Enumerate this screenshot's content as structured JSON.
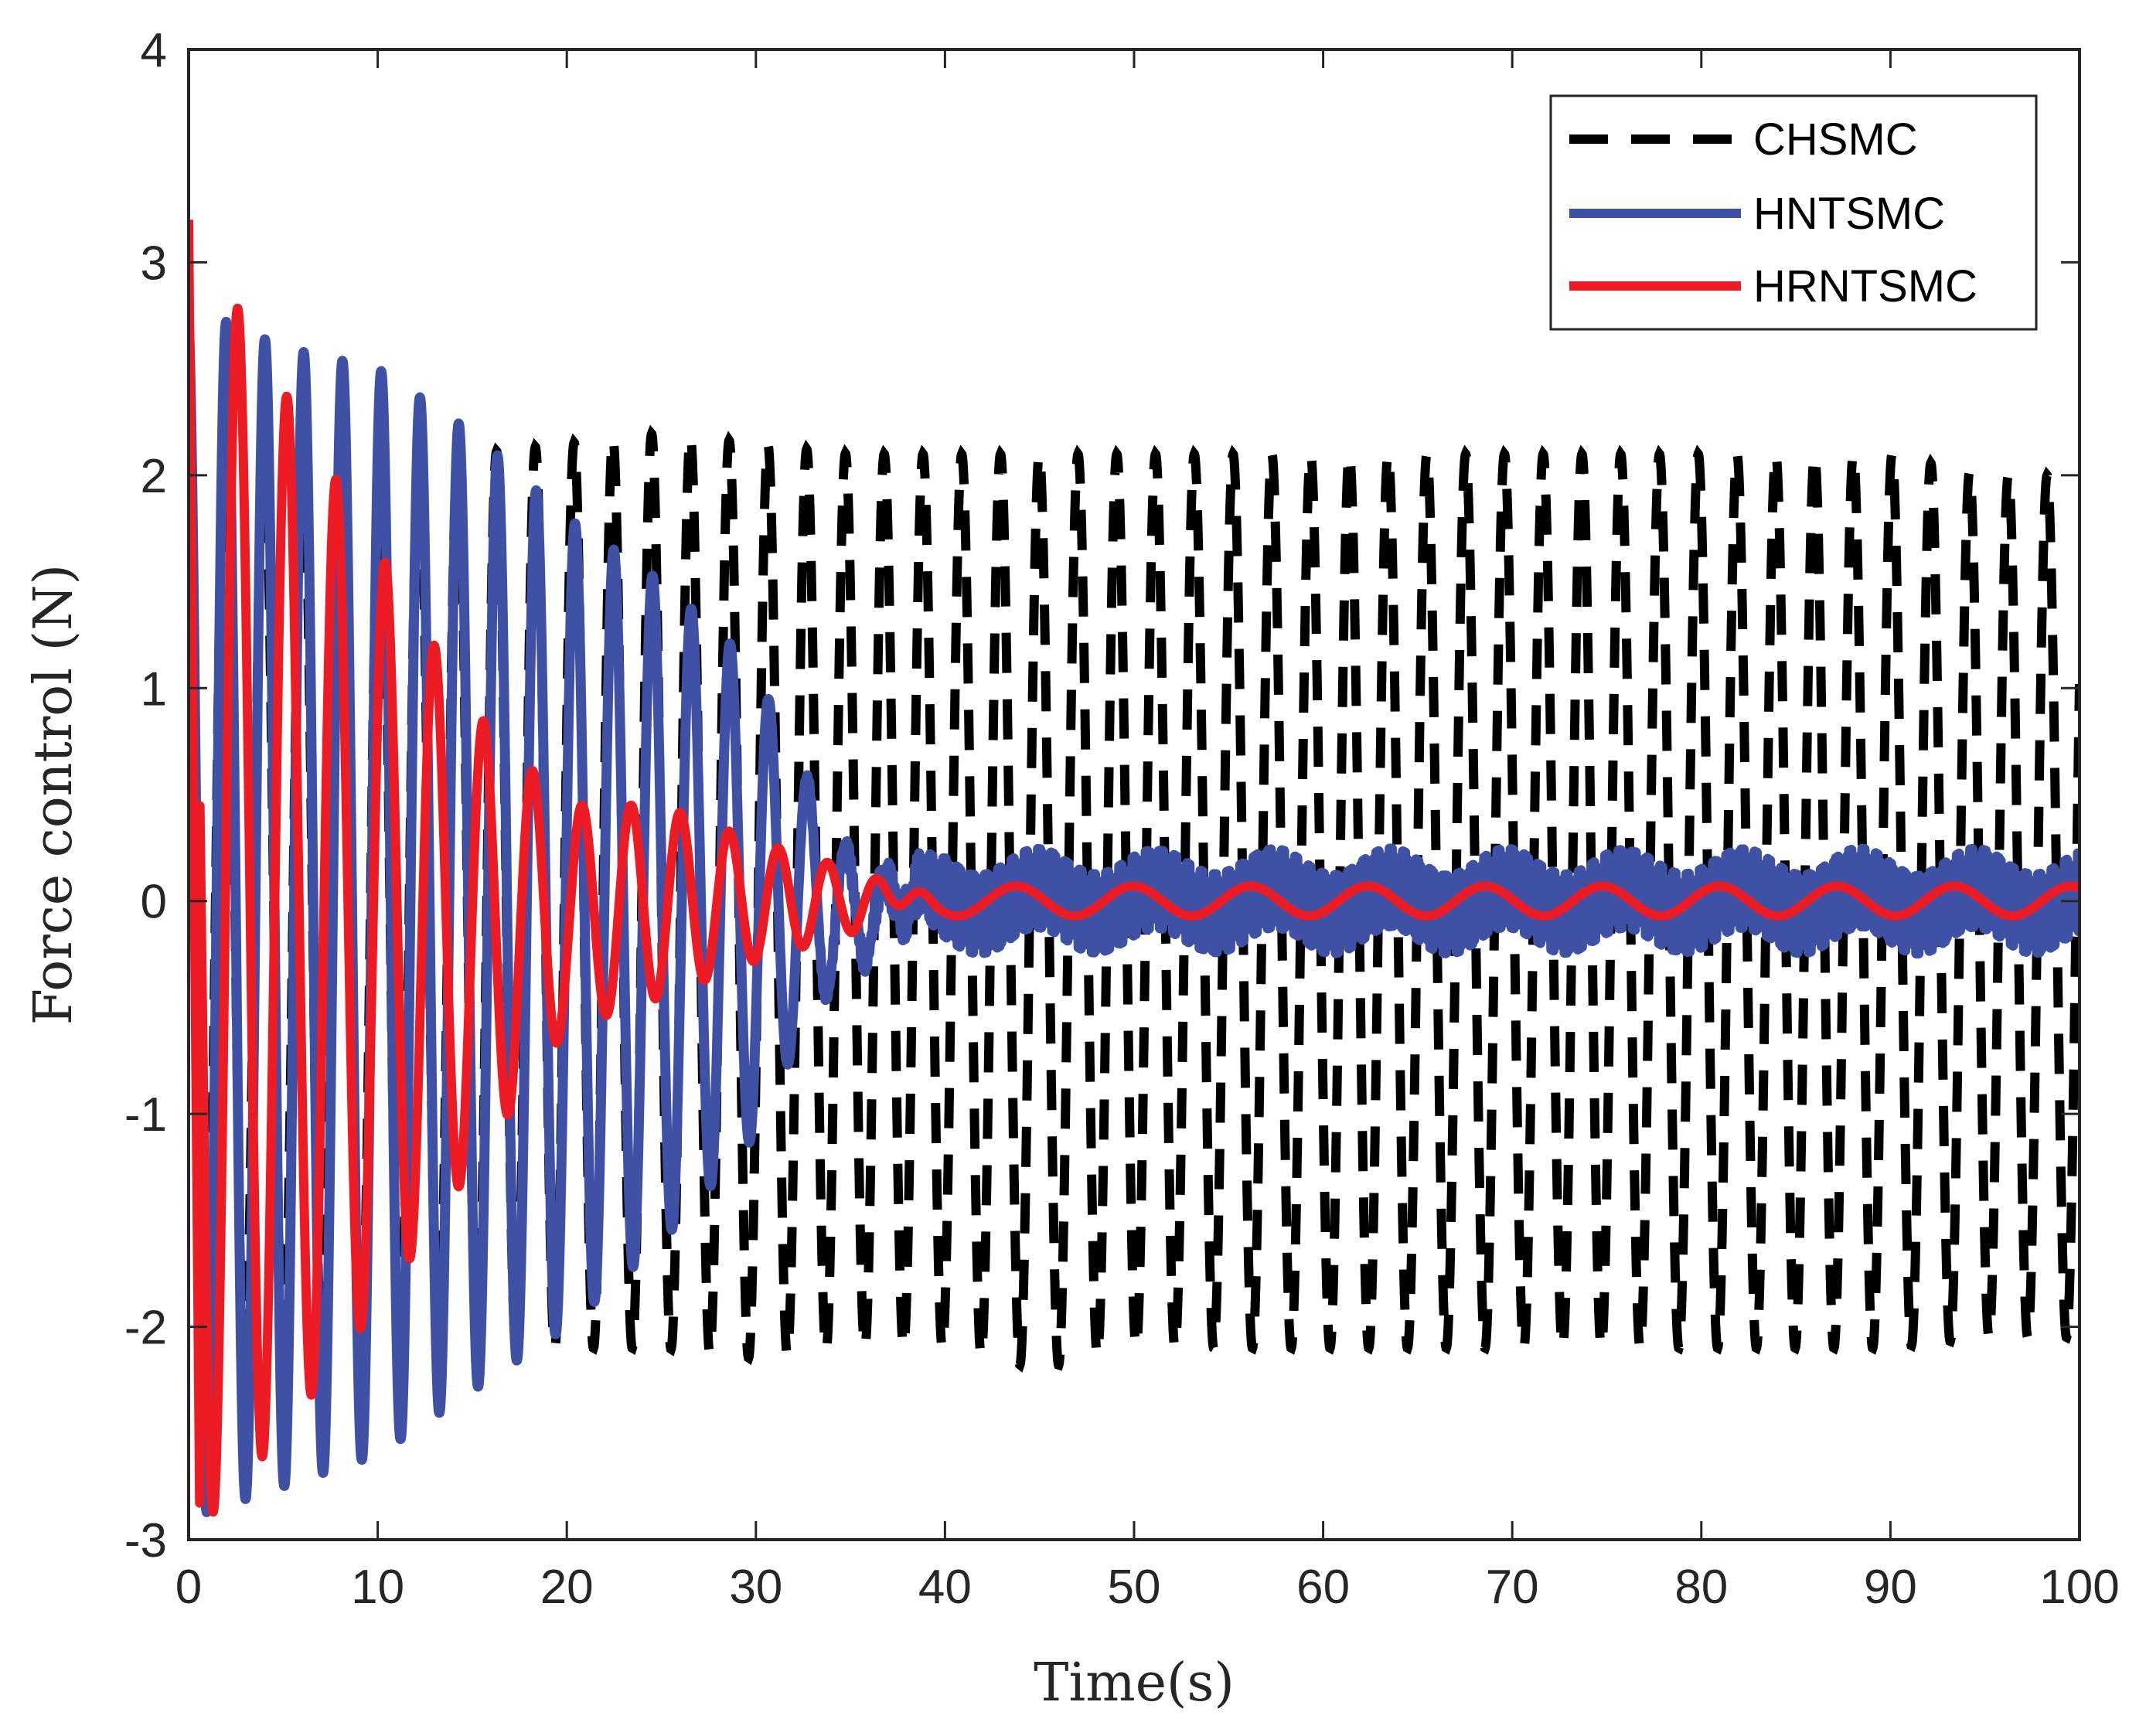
{
  "chart_data": {
    "type": "line",
    "title": "",
    "xlabel": "Time(s)",
    "ylabel": "Force control (N)",
    "xlim": [
      0,
      100
    ],
    "ylim": [
      -3,
      4
    ],
    "xticks": [
      0,
      10,
      20,
      30,
      40,
      50,
      60,
      70,
      80,
      90,
      100
    ],
    "yticks": [
      -3,
      -2,
      -1,
      0,
      1,
      2,
      3,
      4
    ],
    "grid": false,
    "legend_position": "top-right",
    "series": [
      {
        "name": "CHSMC",
        "style": "dashed",
        "color": "#000000",
        "description_model": {
          "amplitude_start": 2.3,
          "amplitude_end": 2.05,
          "period_s": 2.05
        },
        "x": [
          0,
          5,
          10,
          15,
          20,
          25,
          30,
          35,
          40,
          45,
          50,
          55,
          60,
          65,
          70,
          75,
          80,
          85,
          90,
          95,
          100
        ],
        "envelope_max": [
          2.3,
          2.15,
          2.15,
          2.1,
          2.15,
          2.2,
          2.15,
          2.1,
          2.1,
          2.1,
          2.1,
          2.1,
          2.1,
          2.1,
          2.1,
          2.1,
          2.1,
          2.1,
          2.1,
          2.0,
          2.0
        ],
        "envelope_min": [
          -2.3,
          -2.15,
          -2.15,
          -2.1,
          -2.1,
          -2.1,
          -2.15,
          -2.1,
          -2.1,
          -2.2,
          -2.1,
          -2.1,
          -2.1,
          -2.1,
          -2.1,
          -2.1,
          -2.1,
          -2.1,
          -2.1,
          -2.05,
          -2.05
        ]
      },
      {
        "name": "HNTSMC",
        "style": "solid",
        "color": "#3f51a5",
        "description_model": {
          "period_s": 2.05,
          "noise_band": 0.2
        },
        "x": [
          0,
          5,
          10,
          15,
          20,
          25,
          30,
          35,
          40,
          45,
          50,
          55,
          60,
          65,
          70,
          75,
          80,
          85,
          90,
          95,
          100
        ],
        "envelope_max": [
          2.8,
          2.6,
          2.5,
          2.2,
          1.8,
          1.5,
          1.1,
          0.5,
          0.3,
          0.25,
          0.25,
          0.25,
          0.25,
          0.25,
          0.25,
          0.25,
          0.25,
          0.25,
          0.25,
          0.25,
          0.25
        ],
        "envelope_min": [
          -2.9,
          -2.75,
          -2.6,
          -2.3,
          -2.0,
          -1.6,
          -1.1,
          -0.6,
          -0.35,
          -0.3,
          -0.3,
          -0.3,
          -0.3,
          -0.3,
          -0.3,
          -0.3,
          -0.3,
          -0.3,
          -0.3,
          -0.3,
          -0.3
        ]
      },
      {
        "name": "HRNTSMC",
        "style": "solid",
        "color": "#ed1c24",
        "description_model": {
          "start_value": 3.2,
          "period_s": 2.6,
          "steady_amplitude": 0.08
        },
        "x": [
          0,
          5,
          10,
          15,
          20,
          25,
          30,
          35,
          40,
          45,
          50,
          55,
          60,
          65,
          70,
          75,
          80,
          85,
          90,
          95,
          100
        ],
        "envelope_max": [
          3.2,
          2.4,
          1.65,
          0.9,
          0.45,
          0.45,
          0.28,
          0.15,
          0.1,
          0.08,
          0.08,
          0.08,
          0.08,
          0.08,
          0.08,
          0.08,
          0.08,
          0.08,
          0.08,
          0.08,
          0.08
        ],
        "envelope_min": [
          -3.0,
          -2.5,
          -1.9,
          -1.25,
          -0.6,
          -0.45,
          -0.28,
          -0.15,
          -0.1,
          -0.08,
          -0.08,
          -0.08,
          -0.08,
          -0.08,
          -0.08,
          -0.08,
          -0.08,
          -0.08,
          -0.08,
          -0.08,
          -0.08
        ]
      }
    ]
  },
  "colors": {
    "axis": "#262626",
    "chsmc": "#000000",
    "hntsmc": "#3f51a5",
    "hrntsmc": "#ed1c24",
    "background": "#ffffff"
  }
}
